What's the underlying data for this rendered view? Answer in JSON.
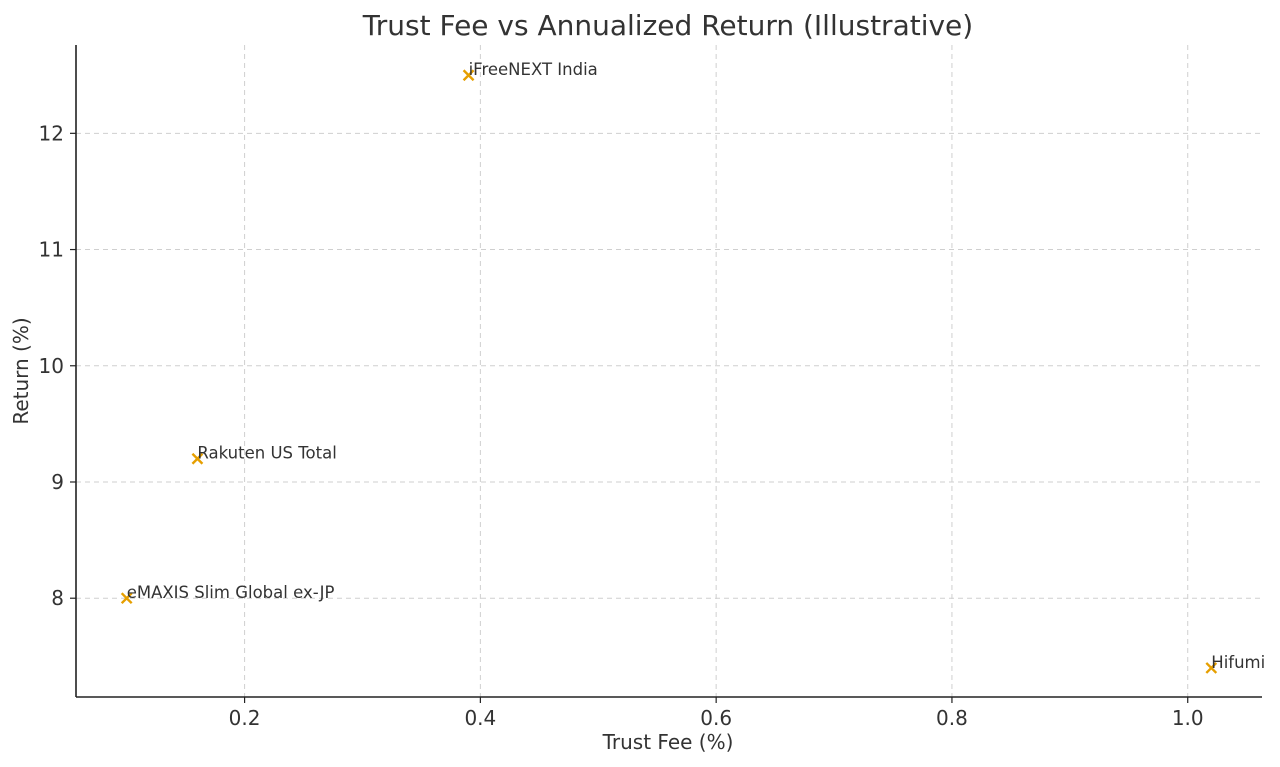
{
  "chart_data": {
    "type": "scatter",
    "title": "Trust Fee vs Annualized Return (Illustrative)",
    "xlabel": "Trust Fee (%)",
    "ylabel": "Return (%)",
    "xlim": [
      0.057,
      1.063
    ],
    "ylim": [
      7.15,
      12.76
    ],
    "x_ticks": [
      0.2,
      0.4,
      0.6,
      0.8,
      1.0
    ],
    "x_tick_labels": [
      "0.2",
      "0.4",
      "0.6",
      "0.8",
      "1.0"
    ],
    "y_ticks": [
      8,
      9,
      10,
      11,
      12
    ],
    "y_tick_labels": [
      "8",
      "9",
      "10",
      "11",
      "12"
    ],
    "grid": true,
    "marker": "x",
    "marker_color": "#E69F00",
    "points": [
      {
        "label": "eMAXIS Slim Global ex-JP",
        "x": 0.1,
        "y": 8.0
      },
      {
        "label": "Rakuten US Total",
        "x": 0.16,
        "y": 9.2
      },
      {
        "label": "iFreeNEXT India",
        "x": 0.39,
        "y": 12.5
      },
      {
        "label": "Hifumi",
        "x": 1.02,
        "y": 7.4
      }
    ]
  }
}
